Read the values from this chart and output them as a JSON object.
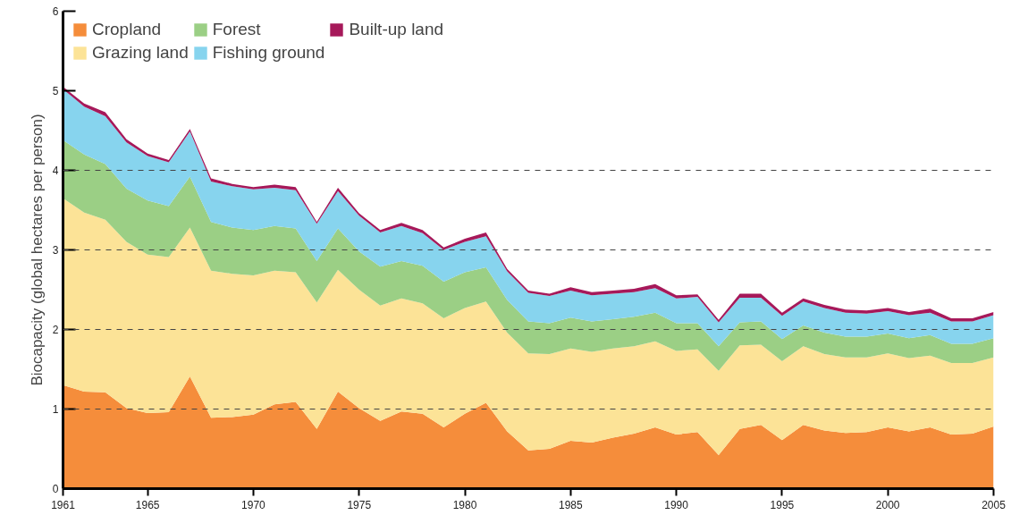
{
  "chart_data": {
    "type": "area",
    "stacked": true,
    "ylabel": "Biocapacity (global hectares per person)",
    "x": [
      1961,
      1962,
      1963,
      1964,
      1965,
      1966,
      1967,
      1968,
      1969,
      1970,
      1971,
      1972,
      1973,
      1974,
      1975,
      1976,
      1977,
      1978,
      1979,
      1980,
      1981,
      1982,
      1983,
      1984,
      1985,
      1986,
      1987,
      1988,
      1989,
      1990,
      1991,
      1992,
      1993,
      1994,
      1995,
      1996,
      1997,
      1998,
      1999,
      2000,
      2001,
      2002,
      2003,
      2004,
      2005
    ],
    "xlim": [
      1961,
      2005
    ],
    "xticks": [
      1961,
      1965,
      1970,
      1975,
      1980,
      1985,
      1990,
      1995,
      2000,
      2005
    ],
    "ylim": [
      0,
      6
    ],
    "yticks": [
      0,
      1,
      2,
      3,
      4,
      5,
      6
    ],
    "grid": false,
    "legend": "top left",
    "ref_lines": [
      {
        "axis": "y",
        "value": 1,
        "color": "#444444",
        "line_style": "dashed"
      },
      {
        "axis": "y",
        "value": 2,
        "color": "#444444",
        "line_style": "dashed"
      },
      {
        "axis": "y",
        "value": 3,
        "color": "#444444",
        "line_style": "dashed"
      },
      {
        "axis": "y",
        "value": 4,
        "color": "#444444",
        "line_style": "dashed"
      }
    ],
    "series": [
      {
        "name": "Cropland",
        "color": "#f58d3b",
        "values": [
          1.3,
          1.22,
          1.21,
          1.01,
          0.95,
          0.96,
          1.41,
          0.89,
          0.9,
          0.93,
          1.06,
          1.09,
          0.75,
          1.22,
          1.01,
          0.85,
          0.97,
          0.94,
          0.77,
          0.94,
          1.08,
          0.72,
          0.48,
          0.5,
          0.6,
          0.58,
          0.64,
          0.69,
          0.77,
          0.68,
          0.71,
          0.42,
          0.75,
          0.8,
          0.61,
          0.8,
          0.73,
          0.7,
          0.71,
          0.77,
          0.72,
          0.77,
          0.68,
          0.69,
          0.78
        ]
      },
      {
        "name": "Grazing land",
        "color": "#fce397",
        "values": [
          2.35,
          2.25,
          2.17,
          2.09,
          1.99,
          1.95,
          1.87,
          1.85,
          1.8,
          1.75,
          1.68,
          1.63,
          1.59,
          1.53,
          1.49,
          1.45,
          1.42,
          1.39,
          1.37,
          1.33,
          1.27,
          1.24,
          1.22,
          1.19,
          1.16,
          1.14,
          1.12,
          1.1,
          1.08,
          1.05,
          1.04,
          1.06,
          1.05,
          1.01,
          0.99,
          0.99,
          0.96,
          0.95,
          0.94,
          0.93,
          0.92,
          0.9,
          0.9,
          0.89,
          0.87
        ]
      },
      {
        "name": "Forest",
        "color": "#9bcf85",
        "values": [
          0.73,
          0.73,
          0.7,
          0.67,
          0.68,
          0.64,
          0.64,
          0.61,
          0.58,
          0.57,
          0.56,
          0.55,
          0.52,
          0.52,
          0.48,
          0.49,
          0.47,
          0.47,
          0.46,
          0.45,
          0.43,
          0.41,
          0.4,
          0.39,
          0.39,
          0.38,
          0.37,
          0.37,
          0.36,
          0.35,
          0.33,
          0.31,
          0.29,
          0.29,
          0.28,
          0.26,
          0.27,
          0.26,
          0.26,
          0.25,
          0.25,
          0.26,
          0.24,
          0.24,
          0.24
        ]
      },
      {
        "name": "Fishing ground",
        "color": "#87d4ee",
        "values": [
          0.64,
          0.6,
          0.6,
          0.58,
          0.56,
          0.55,
          0.57,
          0.51,
          0.52,
          0.51,
          0.48,
          0.48,
          0.47,
          0.47,
          0.45,
          0.43,
          0.44,
          0.41,
          0.4,
          0.38,
          0.39,
          0.36,
          0.36,
          0.34,
          0.34,
          0.33,
          0.32,
          0.31,
          0.31,
          0.31,
          0.33,
          0.3,
          0.31,
          0.3,
          0.29,
          0.3,
          0.31,
          0.3,
          0.29,
          0.28,
          0.29,
          0.28,
          0.28,
          0.28,
          0.29
        ]
      },
      {
        "name": "Built-up land",
        "color": "#a6195a",
        "values": [
          0.03,
          0.04,
          0.05,
          0.04,
          0.03,
          0.03,
          0.03,
          0.04,
          0.03,
          0.03,
          0.04,
          0.04,
          0.02,
          0.04,
          0.03,
          0.03,
          0.04,
          0.04,
          0.03,
          0.04,
          0.05,
          0.03,
          0.03,
          0.03,
          0.04,
          0.04,
          0.04,
          0.04,
          0.05,
          0.04,
          0.03,
          0.03,
          0.05,
          0.05,
          0.04,
          0.04,
          0.04,
          0.04,
          0.04,
          0.04,
          0.04,
          0.05,
          0.04,
          0.04,
          0.04
        ]
      }
    ]
  }
}
